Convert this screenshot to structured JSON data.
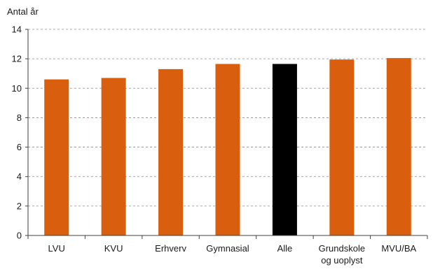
{
  "chart_data": {
    "type": "bar",
    "ylabel": "Antal år",
    "ylim": [
      0,
      14
    ],
    "yticks": [
      0,
      2,
      4,
      6,
      8,
      10,
      12,
      14
    ],
    "grid": true,
    "categories": [
      [
        "LVU"
      ],
      [
        "KVU"
      ],
      [
        "Erhverv"
      ],
      [
        "Gymnasial"
      ],
      [
        "Alle"
      ],
      [
        "Grundskole",
        "og uoplyst"
      ],
      [
        "MVU/BA"
      ]
    ],
    "values": [
      10.6,
      10.7,
      11.3,
      11.65,
      11.65,
      11.95,
      12.05
    ],
    "colors": [
      "#d95f0e",
      "#d95f0e",
      "#d95f0e",
      "#d95f0e",
      "#000000",
      "#d95f0e",
      "#d95f0e"
    ]
  }
}
